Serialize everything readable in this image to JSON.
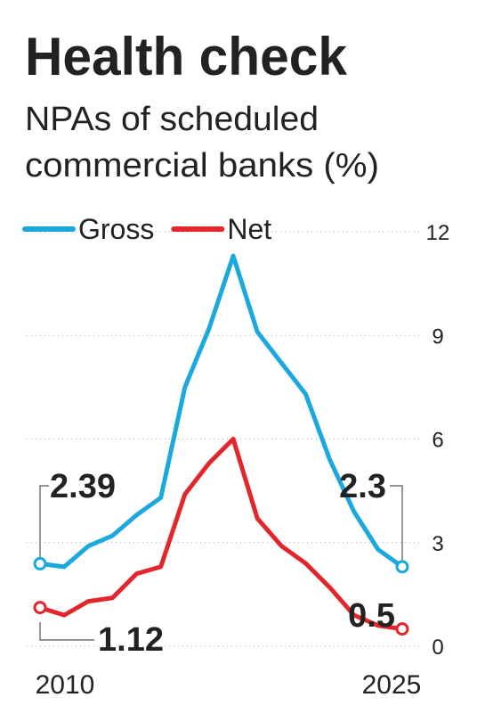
{
  "chart_data": {
    "type": "line",
    "title": "Health check",
    "subtitle": [
      "NPAs of scheduled",
      "commercial banks (%)"
    ],
    "x": [
      2010,
      2011,
      2012,
      2013,
      2014,
      2015,
      2016,
      2017,
      2018,
      2019,
      2020,
      2021,
      2022,
      2023,
      2024,
      2025
    ],
    "series": [
      {
        "name": "Gross",
        "color": "#1ba8dc",
        "values": [
          2.39,
          2.3,
          2.9,
          3.2,
          3.8,
          4.3,
          7.5,
          9.2,
          11.3,
          9.1,
          8.2,
          7.3,
          5.4,
          3.9,
          2.8,
          2.3
        ]
      },
      {
        "name": "Net",
        "color": "#e3262b",
        "values": [
          1.12,
          0.9,
          1.3,
          1.4,
          2.1,
          2.3,
          4.4,
          5.3,
          6.0,
          3.7,
          2.9,
          2.4,
          1.7,
          0.9,
          0.6,
          0.5
        ]
      }
    ],
    "xlim": [
      2010,
      2025
    ],
    "xticks": [
      2010,
      2025
    ],
    "ylim": [
      0,
      12
    ],
    "yticks": [
      0,
      3,
      6,
      9,
      12
    ],
    "grid": true,
    "legend": "top-left"
  }
}
